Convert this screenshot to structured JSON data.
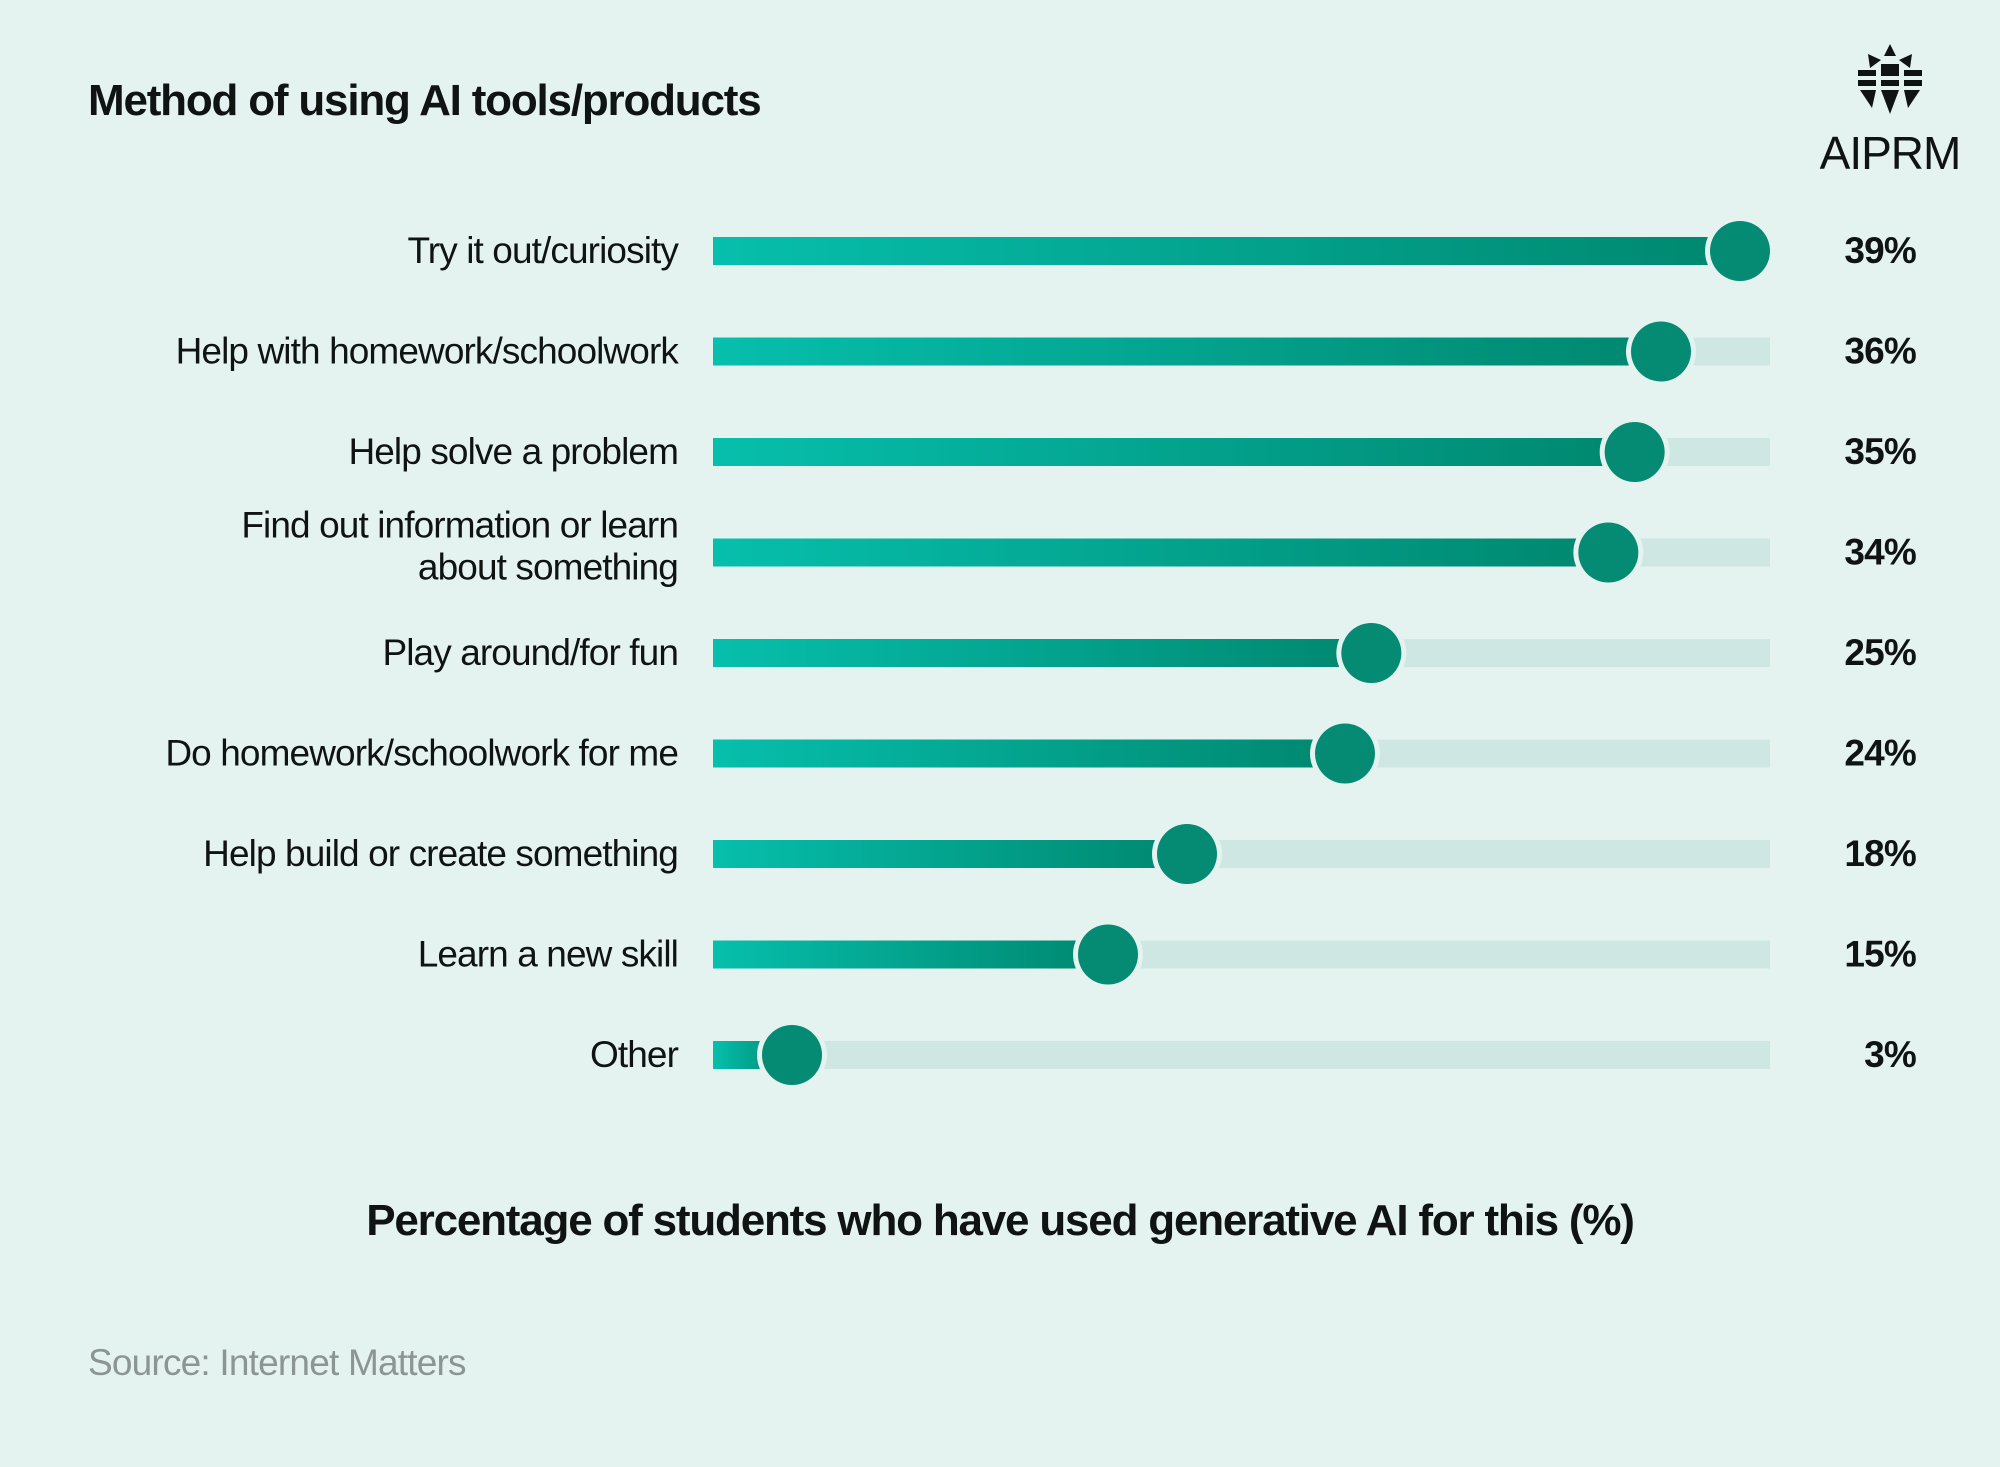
{
  "title": "Method of using AI tools/products",
  "logo": {
    "icon": "aiprm-logo-icon",
    "text": "AIPRM"
  },
  "chart_data": {
    "type": "bar",
    "orientation": "horizontal",
    "categories": [
      "Try it out/curiosity",
      "Help with homework/schoolwork",
      "Help solve a problem",
      "Find out information or learn about something",
      "Play around/for fun",
      "Do homework/schoolwork for me",
      "Help build or create something",
      "Learn a new skill",
      "Other"
    ],
    "category_lines": [
      [
        "Try it out/curiosity"
      ],
      [
        "Help with homework/schoolwork"
      ],
      [
        "Help solve a problem"
      ],
      [
        "Find out information or learn",
        "about something"
      ],
      [
        "Play around/for fun"
      ],
      [
        "Do homework/schoolwork for me"
      ],
      [
        "Help build or create something"
      ],
      [
        "Learn a new skill"
      ],
      [
        "Other"
      ]
    ],
    "values": [
      39,
      36,
      35,
      34,
      25,
      24,
      18,
      15,
      3
    ],
    "value_labels": [
      "39%",
      "36%",
      "35%",
      "34%",
      "25%",
      "24%",
      "18%",
      "15%",
      "3%"
    ],
    "xlim": [
      0,
      39
    ],
    "xlabel": "Percentage of students who have used generative AI for this (%)",
    "grid": false,
    "legend": "none",
    "colors": {
      "background": "#e5f3f0",
      "track": "#cfe7e2",
      "bar_start": "#06bfac",
      "bar_end": "#00876f",
      "dot": "#058a73"
    }
  },
  "source": "Source: Internet Matters"
}
